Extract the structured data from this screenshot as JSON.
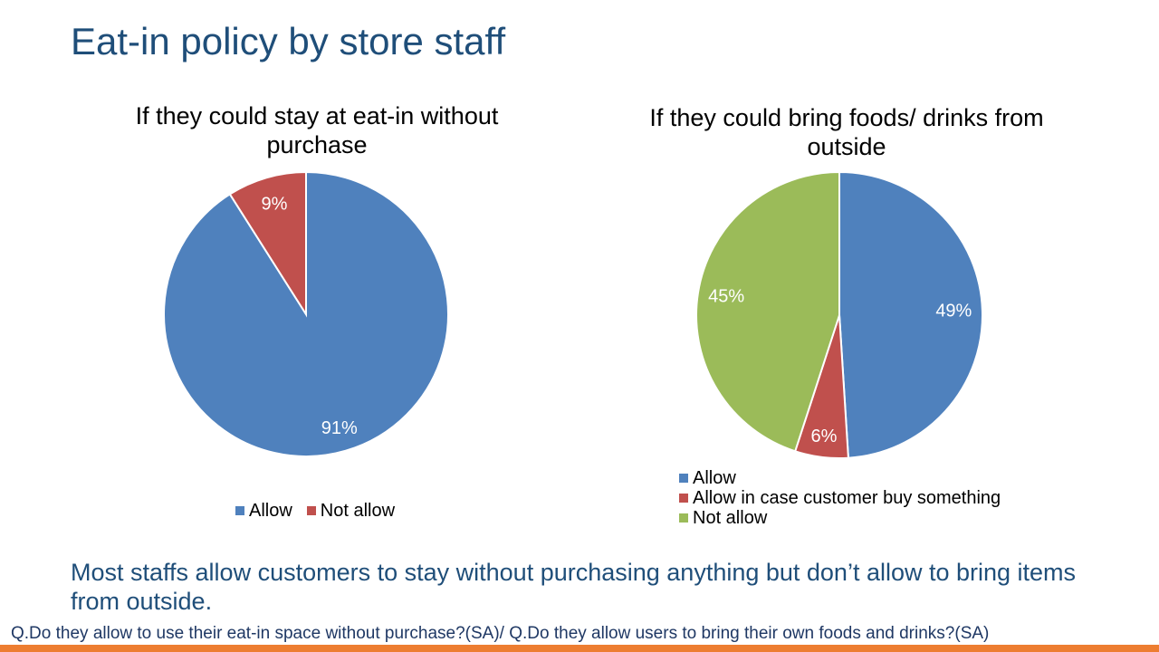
{
  "slide": {
    "title": "Eat-in policy by store staff",
    "summary": "Most staffs allow customers to stay without purchasing anything but don’t allow to bring items from outside.",
    "footnote": "Q.Do they allow to use their eat-in space without purchase?(SA)/ Q.Do they allow users to bring their own foods and drinks?(SA)"
  },
  "colors": {
    "title": "#1f4e79",
    "accent_bar": "#ed7d31"
  },
  "chart_data": [
    {
      "type": "pie",
      "title": "If they could stay at eat-in without purchase",
      "categories": [
        "Allow",
        "Not allow"
      ],
      "values": [
        91,
        9
      ],
      "labels": [
        "91%",
        "9%"
      ],
      "colors": [
        "#4f81bd",
        "#c0504d"
      ],
      "start_angle": "12 o'clock",
      "direction": "clockwise",
      "legend_position": "bottom",
      "legend_layout": "horizontal"
    },
    {
      "type": "pie",
      "title": "If they could bring foods/ drinks from outside",
      "categories": [
        "Allow",
        "Allow in case customer buy something",
        "Not allow"
      ],
      "values": [
        49,
        6,
        45
      ],
      "labels": [
        "49%",
        "6%",
        "45%"
      ],
      "colors": [
        "#4f81bd",
        "#c0504d",
        "#9bbb59"
      ],
      "start_angle": "12 o'clock",
      "direction": "clockwise",
      "legend_position": "bottom",
      "legend_layout": "vertical"
    }
  ]
}
